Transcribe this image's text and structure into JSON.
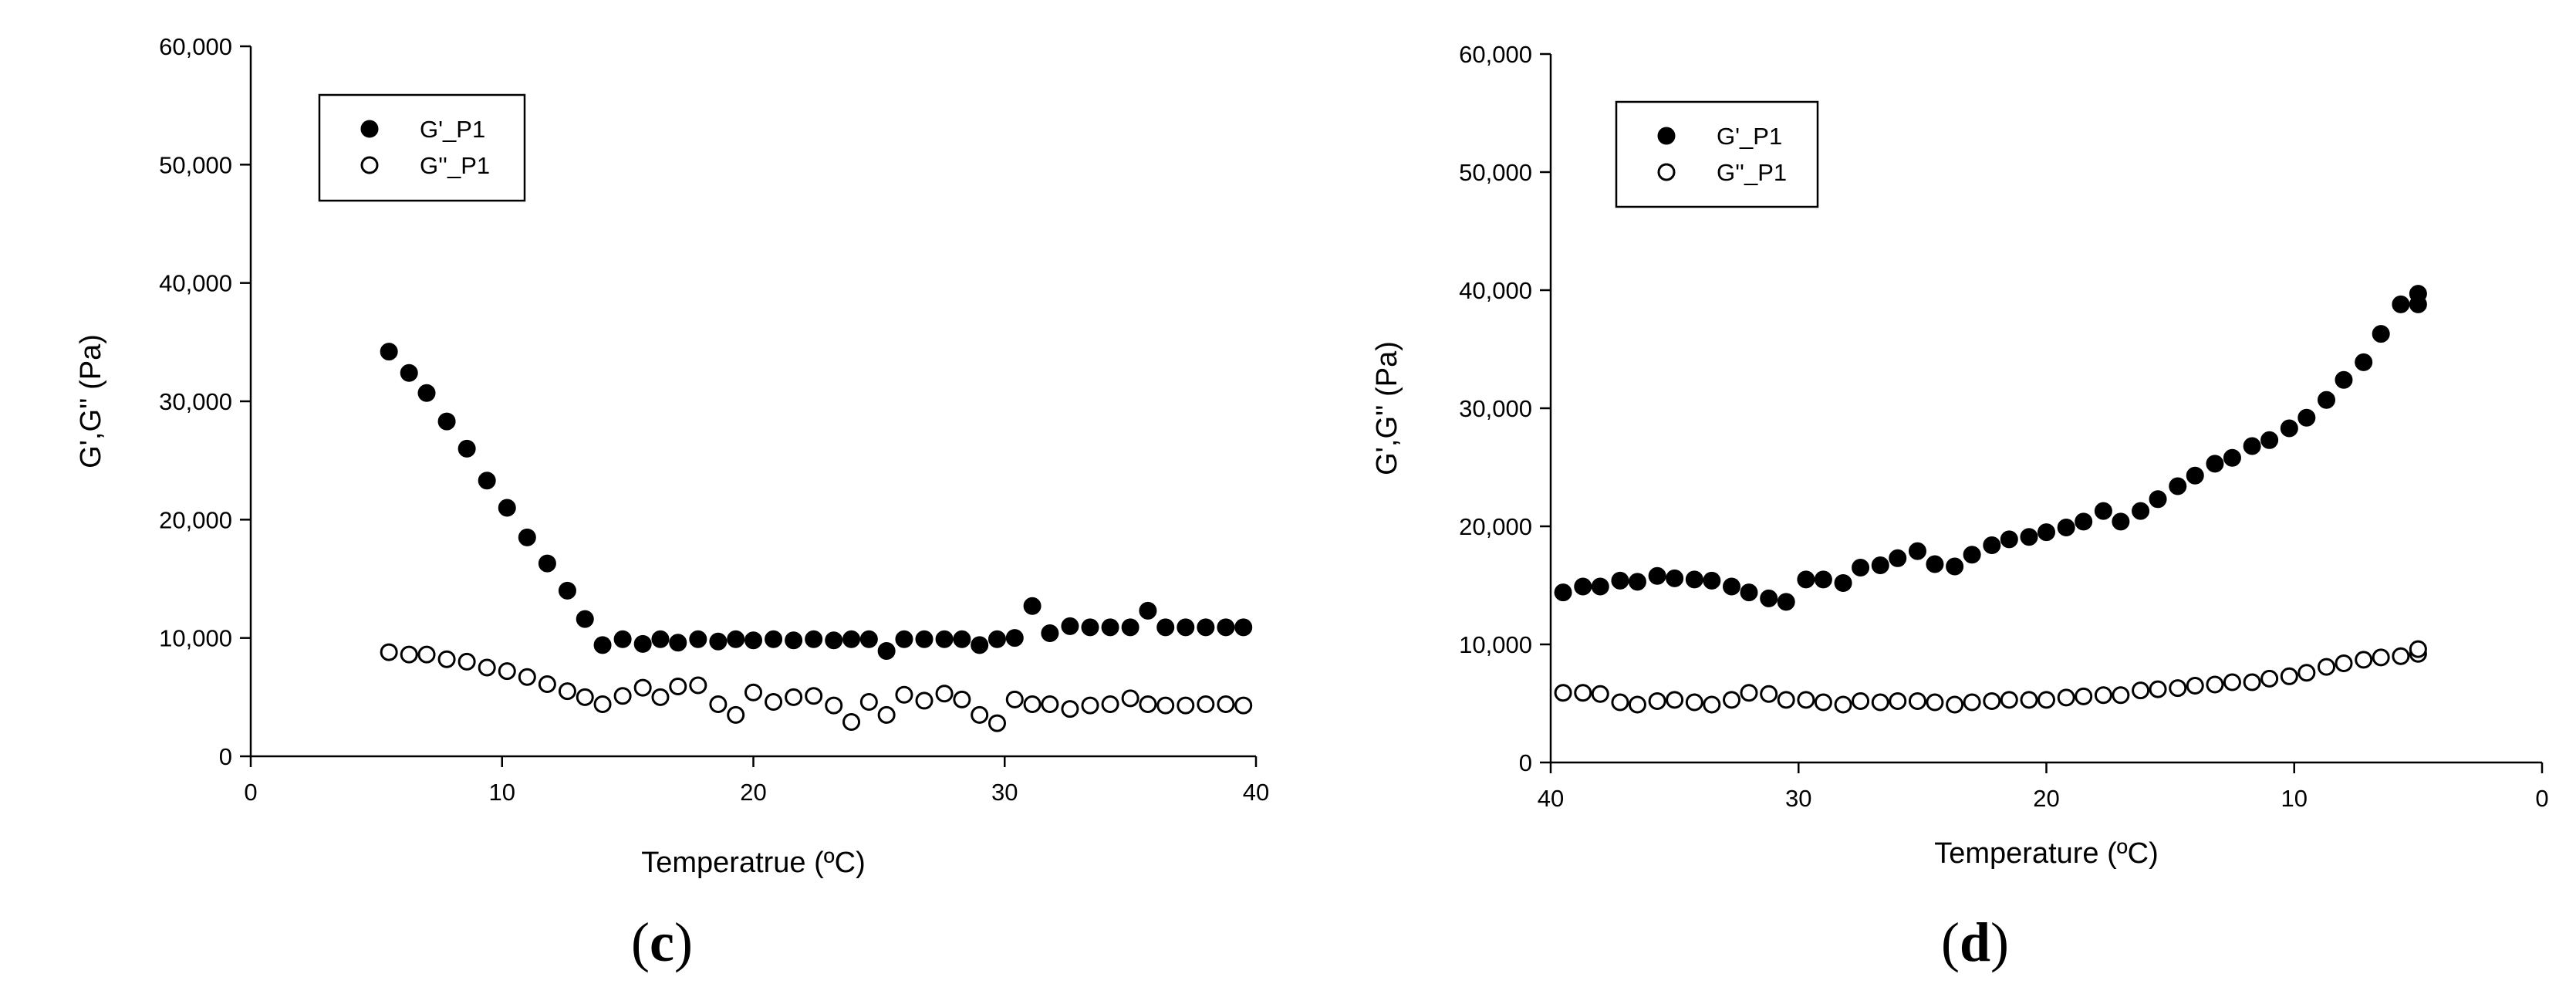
{
  "chart_data": [
    {
      "type": "scatter",
      "panel_label": "c",
      "xlabel": "Temperatrue (ºC)",
      "ylabel": "G',G'' (Pa)",
      "xlim": [
        0,
        40
      ],
      "ylim": [
        0,
        60000
      ],
      "x_direction": "ascending",
      "xticks": [
        0,
        10,
        20,
        30,
        40
      ],
      "yticks": [
        0,
        10000,
        20000,
        30000,
        40000,
        50000,
        60000
      ],
      "xtick_labels": [
        "0",
        "10",
        "20",
        "30",
        "40"
      ],
      "ytick_labels": [
        "0",
        "10,000",
        "20,000",
        "30,000",
        "40,000",
        "50,000",
        "60,000"
      ],
      "legend_position": "top-left",
      "series": [
        {
          "name": "G'_P1",
          "marker": "filled-circle",
          "x": [
            5.5,
            6.3,
            7.0,
            7.8,
            8.6,
            9.4,
            10.2,
            11.0,
            11.8,
            12.6,
            13.3,
            14.0,
            14.8,
            15.6,
            16.3,
            17.0,
            17.8,
            18.6,
            19.3,
            20.0,
            20.8,
            21.6,
            22.4,
            23.2,
            23.9,
            24.6,
            25.3,
            26.0,
            26.8,
            27.6,
            28.3,
            29.0,
            29.7,
            30.4,
            31.1,
            31.8,
            32.6,
            33.4,
            34.2,
            35.0,
            35.7,
            36.4,
            37.2,
            38.0,
            38.8,
            39.5
          ],
          "y": [
            34200,
            32400,
            30700,
            28300,
            26000,
            23300,
            21000,
            18500,
            16300,
            14000,
            11600,
            9400,
            9900,
            9500,
            9900,
            9600,
            9900,
            9700,
            9900,
            9800,
            9900,
            9800,
            9900,
            9800,
            9900,
            9900,
            8900,
            9900,
            9900,
            9900,
            9900,
            9400,
            9900,
            10000,
            12700,
            10400,
            11000,
            10900,
            10900,
            10900,
            12300,
            10900,
            10900,
            10900,
            10900,
            10900
          ]
        },
        {
          "name": "G''_P1",
          "marker": "open-circle",
          "x": [
            5.5,
            6.3,
            7.0,
            7.8,
            8.6,
            9.4,
            10.2,
            11.0,
            11.8,
            12.6,
            13.3,
            14.0,
            14.8,
            15.6,
            16.3,
            17.0,
            17.8,
            18.6,
            19.3,
            20.0,
            20.8,
            21.6,
            22.4,
            23.2,
            23.9,
            24.6,
            25.3,
            26.0,
            26.8,
            27.6,
            28.3,
            29.0,
            29.7,
            30.4,
            31.1,
            31.8,
            32.6,
            33.4,
            34.2,
            35.0,
            35.7,
            36.4,
            37.2,
            38.0,
            38.8,
            39.5
          ],
          "y": [
            8800,
            8600,
            8600,
            8200,
            8000,
            7500,
            7200,
            6700,
            6100,
            5500,
            5000,
            4400,
            5100,
            5800,
            5000,
            5900,
            6000,
            4400,
            3500,
            5400,
            4600,
            5000,
            5100,
            4300,
            2900,
            4600,
            3500,
            5200,
            4700,
            5300,
            4800,
            3500,
            2800,
            4800,
            4400,
            4400,
            4000,
            4300,
            4400,
            4900,
            4400,
            4300,
            4300,
            4400,
            4400,
            4300
          ]
        }
      ]
    },
    {
      "type": "scatter",
      "panel_label": "d",
      "xlabel": "Temperature (ºC)",
      "ylabel": "G',G'' (Pa)",
      "xlim": [
        40,
        0
      ],
      "ylim": [
        0,
        60000
      ],
      "x_direction": "descending",
      "xticks": [
        40,
        30,
        20,
        10,
        0
      ],
      "yticks": [
        0,
        10000,
        20000,
        30000,
        40000,
        50000,
        60000
      ],
      "xtick_labels": [
        "40",
        "30",
        "20",
        "10",
        "0"
      ],
      "ytick_labels": [
        "0",
        "10,000",
        "20,000",
        "30,000",
        "40,000",
        "50,000",
        "60,000"
      ],
      "legend_position": "top-left",
      "series": [
        {
          "name": "G'_P1",
          "marker": "filled-circle",
          "x": [
            39.5,
            38.7,
            38.0,
            37.2,
            36.5,
            35.7,
            35.0,
            34.2,
            33.5,
            32.7,
            32.0,
            31.2,
            30.5,
            29.7,
            29.0,
            28.2,
            27.5,
            26.7,
            26.0,
            25.2,
            24.5,
            23.7,
            23.0,
            22.2,
            21.5,
            20.7,
            20.0,
            19.2,
            18.5,
            17.7,
            17.0,
            16.2,
            15.5,
            14.7,
            14.0,
            13.2,
            12.5,
            11.7,
            11.0,
            10.2,
            9.5,
            8.7,
            8.0,
            7.2,
            6.5,
            5.7,
            5.0,
            5.0
          ],
          "y": [
            14400,
            14900,
            14900,
            15400,
            15300,
            15800,
            15600,
            15500,
            15400,
            14900,
            14400,
            13900,
            13600,
            15500,
            15500,
            15200,
            16500,
            16700,
            17300,
            17900,
            16800,
            16600,
            17600,
            18400,
            18900,
            19100,
            19500,
            19900,
            20400,
            21300,
            20400,
            21300,
            22300,
            23400,
            24300,
            25300,
            25800,
            26800,
            27300,
            28300,
            29200,
            30700,
            32400,
            33900,
            36300,
            38800,
            38800,
            39700
          ]
        },
        {
          "name": "G''_P1",
          "marker": "open-circle",
          "x": [
            39.5,
            38.7,
            38.0,
            37.2,
            36.5,
            35.7,
            35.0,
            34.2,
            33.5,
            32.7,
            32.0,
            31.2,
            30.5,
            29.7,
            29.0,
            28.2,
            27.5,
            26.7,
            26.0,
            25.2,
            24.5,
            23.7,
            23.0,
            22.2,
            21.5,
            20.7,
            20.0,
            19.2,
            18.5,
            17.7,
            17.0,
            16.2,
            15.5,
            14.7,
            14.0,
            13.2,
            12.5,
            11.7,
            11.0,
            10.2,
            9.5,
            8.7,
            8.0,
            7.2,
            6.5,
            5.7,
            5.0,
            5.0
          ],
          "y": [
            5900,
            5900,
            5800,
            5100,
            4900,
            5200,
            5300,
            5100,
            4900,
            5300,
            5900,
            5800,
            5300,
            5300,
            5100,
            4900,
            5200,
            5100,
            5200,
            5200,
            5100,
            4900,
            5100,
            5200,
            5300,
            5300,
            5300,
            5500,
            5600,
            5700,
            5700,
            6100,
            6200,
            6300,
            6500,
            6600,
            6800,
            6800,
            7100,
            7300,
            7600,
            8100,
            8400,
            8700,
            8900,
            9000,
            9200,
            9600
          ]
        }
      ]
    }
  ]
}
